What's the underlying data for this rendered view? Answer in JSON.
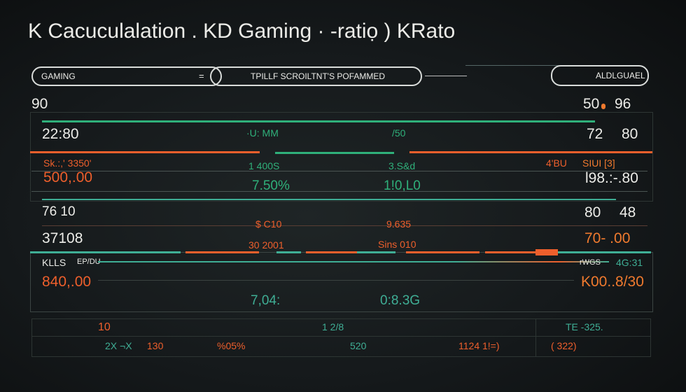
{
  "title": "K Cacuculalation . KD Gaming · -ratiọ )  KRato",
  "header": {
    "tab1": "GAMING",
    "tab1_icon": "=",
    "tab2": "TPILLF SCROILTNT'S POFAMMED",
    "tab3": "ALDLGUAEL"
  },
  "rows": {
    "r1": {
      "left": "90",
      "right_a": "50",
      "right_b": "96"
    },
    "r2": {
      "left": "22:80",
      "mid_a": "·U: MM",
      "mid_b": "/50",
      "right_a": "72",
      "right_b": "80"
    },
    "r3": {
      "label": "Sk.:,' 3350'",
      "mid_a": "1 400S",
      "mid_b": "3.S&d",
      "right_label_a": "4'BU",
      "right_label_b": "SIUI  [3]"
    },
    "r4": {
      "left": "500,.00",
      "mid_a": "7.50%",
      "mid_b": "1!0,L0",
      "right": "l98.:-.80"
    },
    "r5": {
      "left": "76 10",
      "right_a": "80",
      "right_b": "48"
    },
    "r6": {
      "mid_a": "$ C10",
      "mid_b": "9.635"
    },
    "r7": {
      "left": "37108",
      "mid_a": "30 2001",
      "mid_b": "Sins 010",
      "right": "70-  .00"
    },
    "r8": {
      "label_a": "KLLS",
      "label_b": "EP/DU",
      "right_a": "rWGS",
      "right_b": "4G:31"
    },
    "r9": {
      "left": "840,.00",
      "right": "K00..8/30"
    },
    "r10": {
      "mid_a": "7,04:",
      "mid_b": "0:8.3G"
    }
  },
  "footer": {
    "row1": {
      "a": "10",
      "b": "1 2/8",
      "c": "TE -325."
    },
    "row2": {
      "a": "2X ¬X",
      "b": "130",
      "c": "%05%",
      "d": "520",
      "e": "1124  1!=)",
      "f": "( 322)"
    }
  },
  "colors": {
    "green": "#2fb07a",
    "teal": "#3fae95",
    "orange": "#ee5f2c",
    "bg": "#15191b"
  }
}
